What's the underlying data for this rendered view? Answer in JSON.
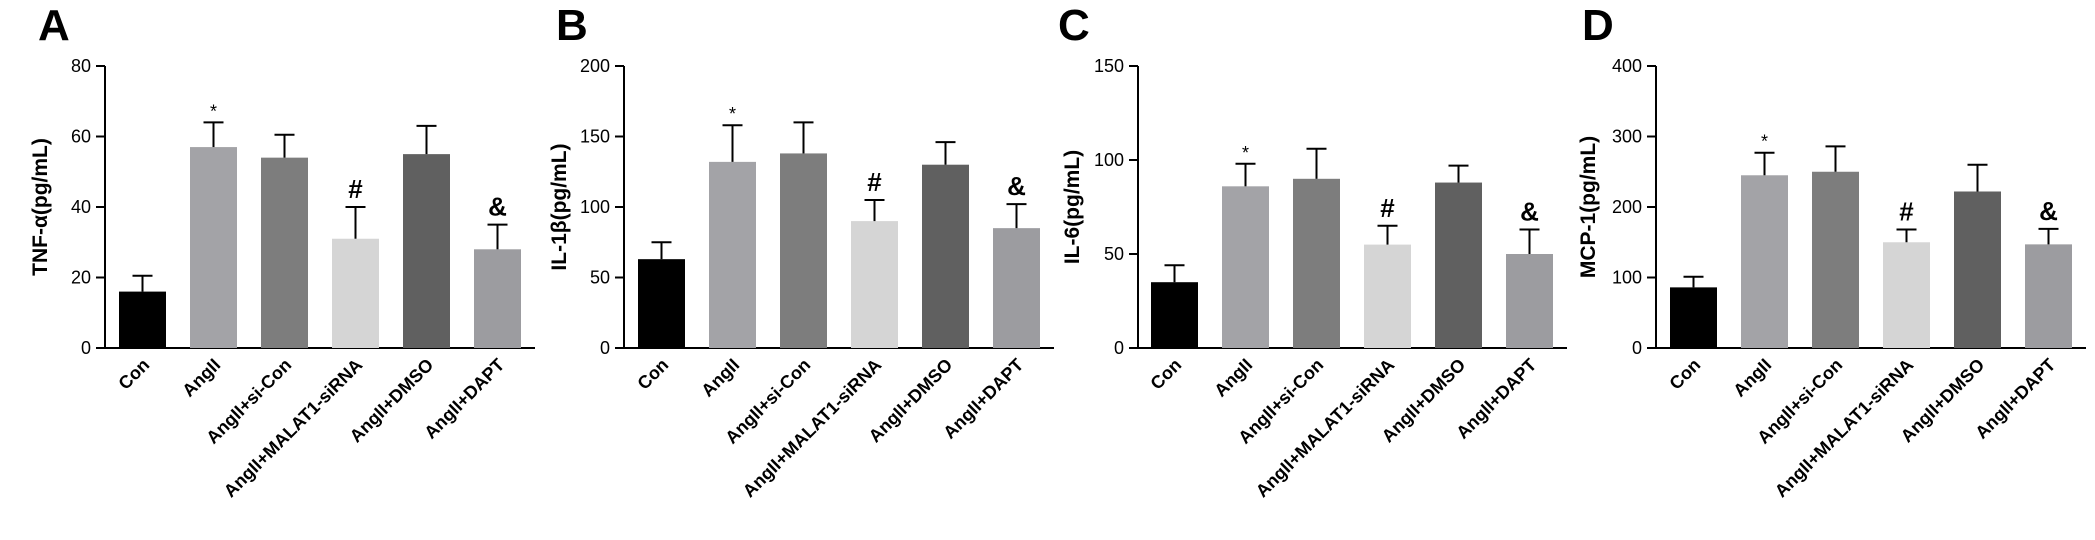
{
  "figure": {
    "colors": [
      "#000000",
      "#a3a3a7",
      "#7d7d7d",
      "#d5d5d5",
      "#606060",
      "#9c9ca0"
    ]
  },
  "chart_data": [
    {
      "panel": "A",
      "type": "bar",
      "ylabel": "TNF-α(pg/mL)",
      "ylim": [
        0,
        80
      ],
      "yticks": [
        0,
        20,
        40,
        60,
        80
      ],
      "categories": [
        "Con",
        "AngII",
        "AngII+si-Con",
        "AngII+MALAT1-siRNA",
        "AngII+DMSO",
        "AngII+DAPT"
      ],
      "values": [
        16,
        57,
        54,
        31,
        55,
        28
      ],
      "errors": [
        4.5,
        7,
        6.5,
        9,
        8,
        7
      ],
      "annotations": [
        "",
        "*",
        "",
        "#",
        "",
        "&"
      ]
    },
    {
      "panel": "B",
      "type": "bar",
      "ylabel": "IL-1β(pg/mL)",
      "ylim": [
        0,
        200
      ],
      "yticks": [
        0,
        50,
        100,
        150,
        200
      ],
      "categories": [
        "Con",
        "AngII",
        "AngII+si-Con",
        "AngII+MALAT1-siRNA",
        "AngII+DMSO",
        "AngII+DAPT"
      ],
      "values": [
        63,
        132,
        138,
        90,
        130,
        85
      ],
      "errors": [
        12,
        26,
        22,
        15,
        16,
        17
      ],
      "annotations": [
        "",
        "*",
        "",
        "#",
        "",
        "&"
      ]
    },
    {
      "panel": "C",
      "type": "bar",
      "ylabel": "IL-6(pg/mL)",
      "ylim": [
        0,
        150
      ],
      "yticks": [
        0,
        50,
        100,
        150
      ],
      "categories": [
        "Con",
        "AngII",
        "AngII+si-Con",
        "AngII+MALAT1-siRNA",
        "AngII+DMSO",
        "AngII+DAPT"
      ],
      "values": [
        35,
        86,
        90,
        55,
        88,
        50
      ],
      "errors": [
        9,
        12,
        16,
        10,
        9,
        13
      ],
      "annotations": [
        "",
        "*",
        "",
        "#",
        "",
        "&"
      ]
    },
    {
      "panel": "D",
      "type": "bar",
      "ylabel": "MCP-1(pg/mL)",
      "ylim": [
        0,
        400
      ],
      "yticks": [
        0,
        100,
        200,
        300,
        400
      ],
      "categories": [
        "Con",
        "AngII",
        "AngII+si-Con",
        "AngII+MALAT1-siRNA",
        "AngII+DMSO",
        "AngII+DAPT"
      ],
      "values": [
        86,
        245,
        250,
        150,
        222,
        147
      ],
      "errors": [
        15,
        32,
        36,
        18,
        38,
        22
      ],
      "annotations": [
        "",
        "*",
        "",
        "#",
        "",
        "&"
      ]
    }
  ]
}
